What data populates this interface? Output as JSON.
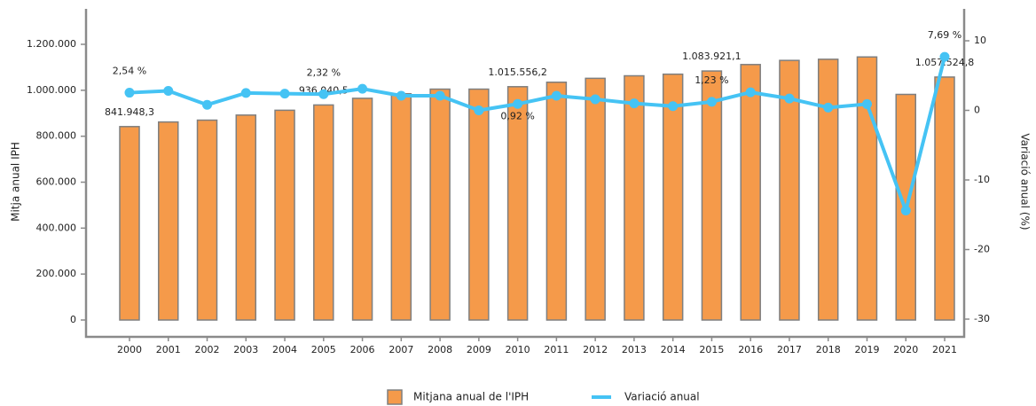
{
  "chart_data": {
    "type": "bar-line",
    "y_label": "Mitja anual IPH",
    "y2_label": "Variació anual (%)",
    "categories": [
      "2000",
      "2001",
      "2002",
      "2003",
      "2004",
      "2005",
      "2006",
      "2007",
      "2008",
      "2009",
      "2010",
      "2011",
      "2012",
      "2013",
      "2014",
      "2015",
      "2016",
      "2017",
      "2018",
      "2019",
      "2020",
      "2021"
    ],
    "series": [
      {
        "name": "Mitjana anual de l'IPH",
        "type": "bar",
        "color": "#f59a4a",
        "values": [
          841948.3,
          862000,
          870000,
          892000,
          913000,
          936040.5,
          965000,
          985000,
          1005000,
          1005000,
          1015556.2,
          1035000,
          1052000,
          1063000,
          1070000,
          1083921.1,
          1112000,
          1130000,
          1135000,
          1145000,
          982000,
          1057524.8
        ],
        "value_labels": [
          "841.948,3",
          null,
          null,
          null,
          null,
          "936.040,5",
          null,
          null,
          null,
          null,
          "1.015.556,2",
          null,
          null,
          null,
          null,
          "1.083.921,1",
          null,
          null,
          null,
          null,
          null,
          "1.057.524,8"
        ]
      },
      {
        "name": "Variació anual",
        "type": "line",
        "axis": "y2",
        "color": "#45c3f4",
        "values": [
          2.54,
          2.8,
          0.8,
          2.5,
          2.4,
          2.32,
          3.1,
          2.1,
          2.1,
          0.0,
          0.92,
          2.1,
          1.6,
          1.0,
          0.6,
          1.23,
          2.6,
          1.7,
          0.4,
          0.9,
          -14.4,
          7.69
        ],
        "value_labels": [
          "2,54 %",
          null,
          null,
          null,
          null,
          "2,32 %",
          null,
          null,
          null,
          null,
          "0,92 %",
          null,
          null,
          null,
          null,
          "1,23 %",
          null,
          null,
          null,
          null,
          null,
          "7,69 %"
        ]
      }
    ],
    "ylim": [
      0,
      1200000
    ],
    "yticks": [
      0,
      {
        "value": 200000,
        "label": "200.000"
      },
      {
        "value": 400000,
        "label": "400.000"
      },
      {
        "value": 600000,
        "label": "600.000"
      },
      {
        "value": 800000,
        "label": "800.000"
      },
      {
        "value": 1000000,
        "label": "1.000.000"
      },
      {
        "value": 1200000,
        "label": "1.200.000"
      }
    ],
    "y2lim": [
      -30,
      10
    ],
    "y2ticks": [
      -30,
      -20,
      -10,
      0,
      10
    ],
    "legend": "bottom"
  }
}
